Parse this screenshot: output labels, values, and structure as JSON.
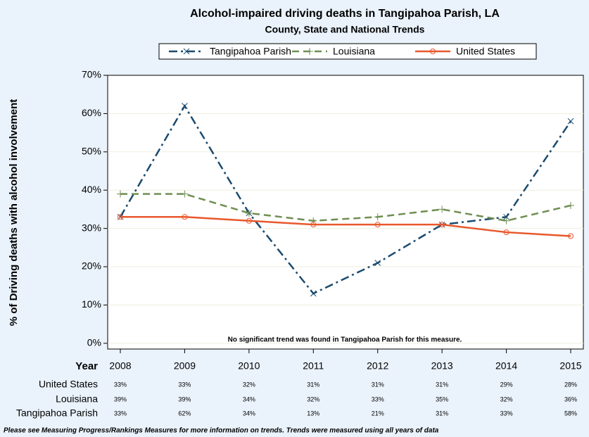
{
  "chart_data": {
    "type": "line",
    "title": "Alcohol-impaired driving deaths in Tangipahoa Parish, LA",
    "subtitle": "County, State and National Trends",
    "y_label": "% of Driving deaths with alcohol involvement",
    "x_label": "Year",
    "annotation": "No significant trend was found in Tangipahoa Parish for this measure.",
    "footnote": "Please see Measuring Progress/Rankings Measures for more information on trends. Trends were measured using all years of data",
    "categories": [
      "2008",
      "2009",
      "2010",
      "2011",
      "2012",
      "2013",
      "2014",
      "2015"
    ],
    "series": [
      {
        "name": "Tangipahoa Parish",
        "color": "#1b4b6f",
        "dash": "dashdot",
        "marker": "x",
        "values": [
          33,
          62,
          34,
          13,
          21,
          31,
          33,
          58
        ],
        "value_labels": [
          "33%",
          "62%",
          "34%",
          "13%",
          "21%",
          "31%",
          "33%",
          "58%"
        ]
      },
      {
        "name": "Louisiana",
        "color": "#6f8f52",
        "dash": "dash",
        "marker": "plus",
        "values": [
          39,
          39,
          34,
          32,
          33,
          35,
          32,
          36
        ],
        "value_labels": [
          "39%",
          "39%",
          "34%",
          "32%",
          "33%",
          "35%",
          "32%",
          "36%"
        ]
      },
      {
        "name": "United States",
        "color": "#e8582c",
        "dash": "solid",
        "marker": "circle",
        "values": [
          33,
          33,
          32,
          31,
          31,
          31,
          29,
          28
        ],
        "value_labels": [
          "33%",
          "33%",
          "32%",
          "31%",
          "31%",
          "31%",
          "29%",
          "28%"
        ]
      }
    ],
    "table_order": [
      2,
      1,
      0
    ],
    "ylim": [
      -1.5,
      70
    ],
    "yticks": [
      {
        "value": 0,
        "label": "0%"
      },
      {
        "value": 10,
        "label": "10%"
      },
      {
        "value": 20,
        "label": "20%"
      },
      {
        "value": 30,
        "label": "30%"
      },
      {
        "value": 40,
        "label": "40%"
      },
      {
        "value": 50,
        "label": "50%"
      },
      {
        "value": 60,
        "label": "60%"
      },
      {
        "value": 70,
        "label": "70%"
      }
    ],
    "grid": true
  }
}
